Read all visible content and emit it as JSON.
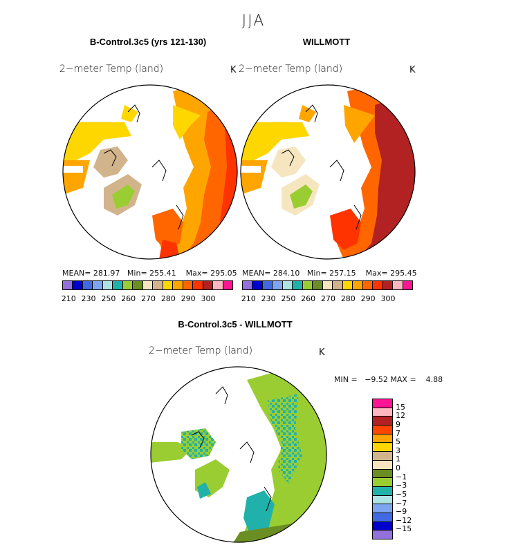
{
  "season": "JJA",
  "panels": [
    {
      "title": "B-Control.3c5 (yrs 121-130)",
      "variable": "2−meter Temp (land)",
      "units": "K",
      "mean_label": "MEAN=",
      "mean": "281.97",
      "min_label": "Min=",
      "min": "255.41",
      "max_label": "Max=",
      "max": "295.05"
    },
    {
      "title": "WILLMOTT",
      "variable": "2−meter Temp (land)",
      "units": "K",
      "mean_label": "MEAN=",
      "mean": "284.10",
      "min_label": "Min=",
      "min": "257.15",
      "max_label": "Max=",
      "max": "295.45"
    }
  ],
  "colorbar": {
    "colors": [
      "#9370DB",
      "#0000CD",
      "#4169E1",
      "#7EA6F0",
      "#AEE3E3",
      "#20B2AA",
      "#9ACD32",
      "#6B8E23",
      "#F5E6C0",
      "#D2B48C",
      "#FFD700",
      "#FFA500",
      "#FF6600",
      "#FF3300",
      "#B22222",
      "#FFB6C1",
      "#FF1493"
    ],
    "labels": [
      "210",
      "230",
      "250",
      "260",
      "270",
      "280",
      "290",
      "300"
    ]
  },
  "diff": {
    "title": "B-Control.3c5 - WILLMOTT",
    "variable": "2−meter Temp (land)",
    "units": "K",
    "min_label": "MIN =",
    "min": "−9.52",
    "max_label": "MAX =",
    "max": "4.88",
    "legend_colors": [
      "#FF1493",
      "#FFB6C1",
      "#B22222",
      "#FF4500",
      "#FFA500",
      "#FFD700",
      "#D2B48C",
      "#F5E6C0",
      "#6B8E23",
      "#9ACD32",
      "#20B2AA",
      "#AEE3E3",
      "#7EA6F0",
      "#4169E1",
      "#0000CD",
      "#9370DB"
    ],
    "legend_labels": [
      "15",
      "12",
      "9",
      "7",
      "5",
      "3",
      "1",
      "0",
      "−1",
      "−3",
      "−5",
      "−7",
      "−9",
      "−12",
      "−15"
    ]
  }
}
